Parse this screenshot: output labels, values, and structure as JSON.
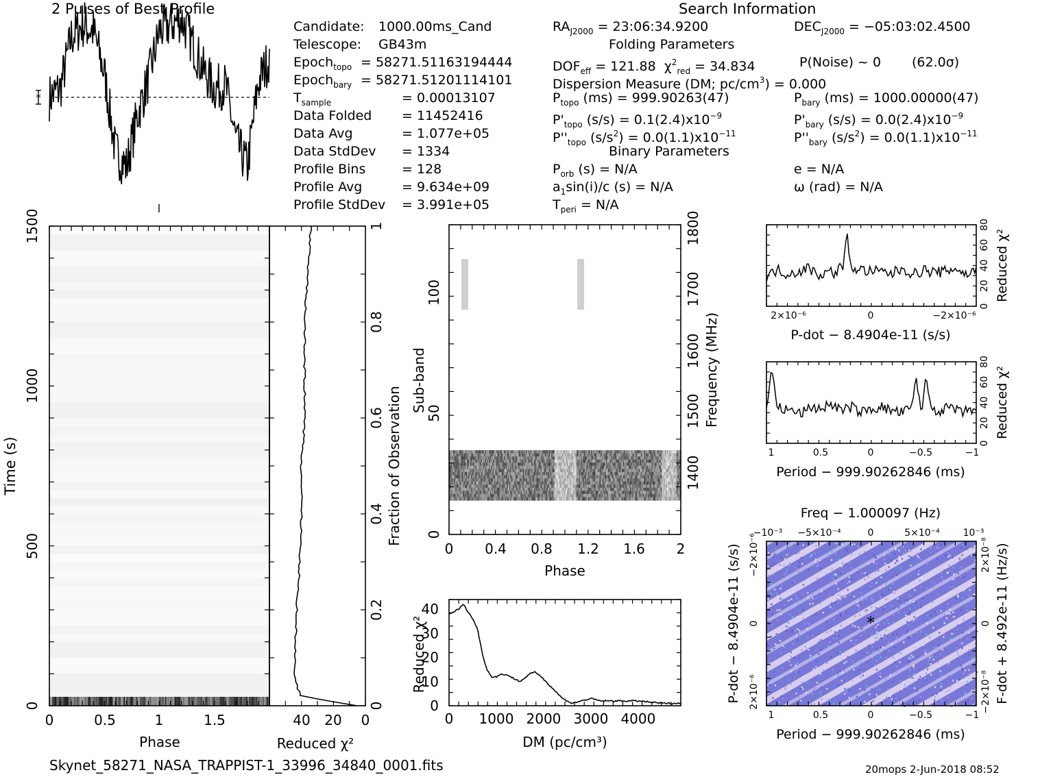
{
  "header": {
    "title": "2 Pulses of Best Profile",
    "search_title": "Search Information",
    "folding_title": "Folding Parameters",
    "binary_title": "Binary Parameters"
  },
  "params_left": [
    {
      "k": "Candidate:",
      "v": "1000.00ms_Cand"
    },
    {
      "k": "Telescope:",
      "v": "GB43m"
    },
    {
      "k": "Epoch",
      "sub": "topo",
      "v": "= 58271.51163194444"
    },
    {
      "k": "Epoch",
      "sub": "bary",
      "v": "= 58271.51201114101"
    },
    {
      "k": "T",
      "sub": "sample",
      "v": "=  0.00013107"
    },
    {
      "k": "Data Folded",
      "v": "=  11452416"
    },
    {
      "k": "Data Avg",
      "v": "=  1.077e+05"
    },
    {
      "k": "Data StdDev",
      "v": "=  1334"
    },
    {
      "k": "Profile Bins",
      "v": "=  128"
    },
    {
      "k": "Profile Avg",
      "v": "=  9.634e+09"
    },
    {
      "k": "Profile StdDev",
      "v": "=  3.991e+05"
    }
  ],
  "search": {
    "ra_label": "RA",
    "ra_sub": "J2000",
    "ra_value": "= 23:06:34.9200",
    "dec_label": "DEC",
    "dec_sub": "J2000",
    "dec_value": "= −05:03:02.4500"
  },
  "folding": {
    "dof_label": "DOF",
    "dof_sub": "eff",
    "dof_value": "= 121.88",
    "chi_label": "χ",
    "chi_sup": "2",
    "chi_sub": "red",
    "chi_value": "= 34.834",
    "pnoise": "P(Noise) ~ 0",
    "sigma": "(62.0σ)",
    "dm_pre": "Dispersion Measure (DM; pc/cm",
    "dm_sup": "3",
    "dm_post": ") = 0.000",
    "ptopo_label": "P",
    "ptopo_sub": "topo",
    "ptopo_value": "(ms) =  999.90263(47)",
    "pbary_label": "P",
    "pbary_sub": "bary",
    "pbary_value": "(ms) =  1000.00000(47)",
    "pdtopo_label": "P'",
    "pdtopo_sub": "topo",
    "pdtopo_value": "(s/s) =  0.1(2.4)x10",
    "pdtopo_exp": "−9",
    "pdbary_label": "P'",
    "pdbary_sub": "bary",
    "pdbary_value": "(s/s) = 0.0(2.4)x10",
    "pdbary_exp": "−9",
    "pddtopo_label": "P''",
    "pddtopo_sub": "topo",
    "pddtopo_value": "(s/s",
    "pddtopo_sup": "2",
    "pddtopo_tail": ") = 0.0(1.1)x10",
    "pddtopo_exp": "−11",
    "pddbary_label": "P''",
    "pddbary_sub": "bary",
    "pddbary_value": "(s/s",
    "pddbary_sup": "2",
    "pddbary_tail": ") = 0.0(1.1)x10",
    "pddbary_exp": "−11"
  },
  "binary": {
    "porb_label": "P",
    "porb_sub": "orb",
    "porb_value": "(s) = N/A",
    "e": "e = N/A",
    "a1_pre": "a",
    "a1_sub": "1",
    "a1_value": "sin(i)/c (s) = N/A",
    "omega": "ω (rad) = N/A",
    "tperi_label": "T",
    "tperi_sub": "peri",
    "tperi_value": "= N/A"
  },
  "footer": {
    "filename": "Skynet_58271_NASA_TRAPPIST-1_33996_34840_0001.fits",
    "stamp": "20mops   2-Jun-2018 08:52"
  },
  "chart_data": [
    {
      "id": "profile",
      "type": "line",
      "title": "2 Pulses of Best Profile",
      "x": [
        0.0,
        0.1,
        0.2,
        0.3,
        0.4,
        0.5,
        0.6,
        0.7,
        0.8,
        0.9,
        1.0,
        1.1,
        1.2,
        1.3,
        1.4,
        1.5,
        1.6,
        1.7,
        1.8,
        1.9,
        2.0
      ],
      "y": [
        0.0,
        0.3,
        2.0,
        2.4,
        2.2,
        0.8,
        -1.8,
        -2.3,
        -0.6,
        0.6,
        2.2,
        2.4,
        2.6,
        1.8,
        0.9,
        0.3,
        0.4,
        -1.5,
        -2.3,
        0.5,
        1.3
      ],
      "baseline": 0
    },
    {
      "id": "time-phase",
      "type": "heatmap",
      "xlabel": "Phase",
      "ylabel": "Time (s)",
      "y2label": "Fraction of Observation",
      "x_ticks": [
        "0",
        "0.5",
        "1",
        "1.5"
      ],
      "y_ticks": [
        "0",
        "500",
        "1000",
        "1500"
      ],
      "y2_ticks": [
        "0",
        "0.2",
        "0.4",
        "0.6",
        "0.8",
        "1"
      ],
      "xlim": [
        0,
        2
      ],
      "ylim": [
        0,
        1500
      ]
    },
    {
      "id": "time-chi2",
      "type": "line",
      "xlabel": "Reduced χ²",
      "x_ticks": [
        "40",
        "20",
        "0"
      ],
      "xlim": [
        60,
        0
      ],
      "fraction": [
        0.0,
        0.02,
        0.05,
        0.1,
        0.2,
        0.3,
        0.4,
        0.5,
        0.6,
        0.7,
        0.8,
        0.9,
        1.0
      ],
      "chi2": [
        5,
        40,
        44,
        44,
        43,
        41,
        40,
        40,
        38,
        38,
        38,
        36,
        34
      ]
    },
    {
      "id": "subband-phase",
      "type": "heatmap",
      "xlabel": "Phase",
      "ylabel": "Sub-band",
      "y2label": "Frequency (MHz)",
      "x_ticks": [
        "0",
        "0.4",
        "0.8",
        "1.2",
        "1.6",
        "2"
      ],
      "y_ticks": [
        "0",
        "50",
        "100"
      ],
      "y2_ticks": [
        "1400",
        "1500",
        "1600",
        "1700",
        "1800"
      ],
      "xlim": [
        0,
        2
      ],
      "ylim": [
        0,
        128
      ]
    },
    {
      "id": "dm-chi2",
      "type": "line",
      "xlabel": "DM (pc/cm³)",
      "ylabel": "Reduced χ²",
      "x_ticks": [
        "0",
        "1000",
        "2000",
        "3000",
        "4000"
      ],
      "y_ticks": [
        "0",
        "10",
        "20",
        "30",
        "40"
      ],
      "xlim": [
        0,
        4900
      ],
      "ylim": [
        0,
        44
      ],
      "x": [
        0,
        100,
        200,
        300,
        400,
        500,
        600,
        700,
        800,
        900,
        1000,
        1100,
        1200,
        1300,
        1500,
        1700,
        1800,
        1900,
        2000,
        2200,
        2400,
        2600,
        2800,
        3000,
        3200,
        3500,
        4000,
        4500,
        4900
      ],
      "y": [
        38,
        39,
        40,
        42,
        39,
        36,
        32,
        22,
        15,
        12,
        12,
        13,
        13,
        12,
        10,
        13,
        14,
        13,
        11,
        7,
        3,
        1,
        2,
        3,
        2,
        2,
        2,
        1,
        1
      ]
    },
    {
      "id": "pdot-chi2",
      "type": "line",
      "xlabel": "P-dot − 8.4904e-11 (s/s)",
      "ylabel": "Reduced χ²",
      "x_ticks": [
        "2×10⁻⁶",
        "0",
        "−2×10⁻⁶"
      ],
      "y_ticks": [
        "0",
        "20",
        "40",
        "60",
        "80"
      ],
      "ylim": [
        0,
        85
      ],
      "x": [
        3,
        2.7,
        2.4,
        2.1,
        1.8,
        1.5,
        1.2,
        1.0,
        0.9,
        0.8,
        0.7,
        0.6,
        0.5,
        0.3,
        0.0,
        -0.3,
        -0.6,
        -0.9,
        -1.2,
        -1.5,
        -1.8,
        -2.1,
        -2.4,
        -2.7,
        -3
      ],
      "y": [
        30,
        38,
        34,
        36,
        40,
        33,
        36,
        35,
        40,
        44,
        75,
        42,
        40,
        38,
        36,
        36,
        34,
        40,
        33,
        38,
        35,
        36,
        40,
        33,
        38
      ]
    },
    {
      "id": "period-chi2",
      "type": "line",
      "xlabel": "Period − 999.90262846 (ms)",
      "ylabel": "Reduced χ²",
      "x_ticks": [
        "1",
        "0.5",
        "0",
        "−0.5",
        "−1"
      ],
      "y_ticks": [
        "0",
        "20",
        "40",
        "60",
        "80"
      ],
      "ylim": [
        0,
        90
      ],
      "x": [
        1.05,
        1.0,
        0.95,
        0.9,
        0.8,
        0.7,
        0.6,
        0.5,
        0.4,
        0.3,
        0.2,
        0.1,
        0.0,
        -0.1,
        -0.2,
        -0.3,
        -0.4,
        -0.45,
        -0.5,
        -0.55,
        -0.6,
        -0.7,
        -0.8,
        -0.9,
        -1.0,
        -1.05
      ],
      "y": [
        40,
        85,
        42,
        38,
        36,
        33,
        40,
        38,
        44,
        36,
        40,
        34,
        38,
        40,
        36,
        34,
        38,
        70,
        36,
        72,
        38,
        36,
        40,
        33,
        38,
        36
      ]
    },
    {
      "id": "period-pdot",
      "type": "heatmap",
      "title": "Freq − 1.000097 (Hz)",
      "xlabel": "Period − 999.90262846 (ms)",
      "ylabel": "P-dot − 8.4904e-11 (s/s)",
      "y2label": "F-dot + 8.492e-11 (Hz/s)",
      "x_ticks": [
        "1",
        "0.5",
        "0",
        "−0.5",
        "−1"
      ],
      "x2_ticks": [
        "−10⁻³",
        "−5×10⁻⁴",
        "0",
        "5×10⁻⁴",
        "10⁻³"
      ],
      "y_ticks": [
        "2×10⁻⁶",
        "0",
        "−2×10⁻⁶"
      ],
      "y2_ticks": [
        "−2×10⁻⁸",
        "0",
        "2×10⁻⁸"
      ],
      "colors": {
        "low": "#6f6fd6",
        "high": "#f2eef8"
      }
    }
  ]
}
